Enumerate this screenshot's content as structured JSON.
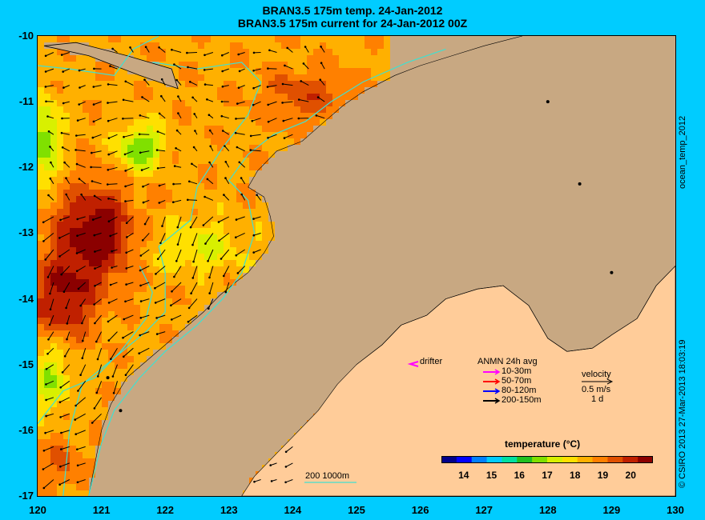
{
  "titles": {
    "line1": "BRAN3.5 175m temp. 24-Jan-2012",
    "line2": "BRAN3.5 175m current for 24-Jan-2012 00Z"
  },
  "axes": {
    "lon_labels": [
      "120",
      "121",
      "122",
      "123",
      "124",
      "125",
      "126",
      "127",
      "128",
      "129",
      "130"
    ],
    "lat_labels": [
      "-10",
      "-11",
      "-12",
      "-13",
      "-14",
      "-15",
      "-16",
      "-17"
    ],
    "lon_range": [
      120,
      130
    ],
    "lat_range": [
      -17,
      -10
    ]
  },
  "side_labels": {
    "product": "ocean_temp_2012",
    "credit": "© CSIRO 2013   27-Mar-2013 18:03:19"
  },
  "legend": {
    "drifter": "drifter",
    "anmn_title": "ANMN 24h avg",
    "depth_bins": [
      {
        "label": "10-30m",
        "color": "#ff00ff"
      },
      {
        "label": "50-70m",
        "color": "#ff0000"
      },
      {
        "label": "80-120m",
        "color": "#0000ff"
      },
      {
        "label": "200-150m",
        "color": "#000000"
      }
    ],
    "velocity_title": "velocity",
    "velocity_scale": "0.5 m/s",
    "velocity_time": "1 d",
    "isobath_label": "200   1000m"
  },
  "colorbar": {
    "title": "temperature (°C)",
    "ticks": [
      "14",
      "15",
      "16",
      "17",
      "18",
      "19",
      "20"
    ],
    "range": [
      13.2,
      20.8
    ],
    "colors": [
      "#00008b",
      "#0000ff",
      "#0080ff",
      "#00ccff",
      "#00e0a0",
      "#20c020",
      "#80e000",
      "#d8f000",
      "#ffe000",
      "#ffb000",
      "#ff8000",
      "#e05000",
      "#c02000",
      "#8b0000"
    ]
  },
  "colors": {
    "background": "#00ccff",
    "land": "#c8a882",
    "isobath": "#40e0d0"
  }
}
